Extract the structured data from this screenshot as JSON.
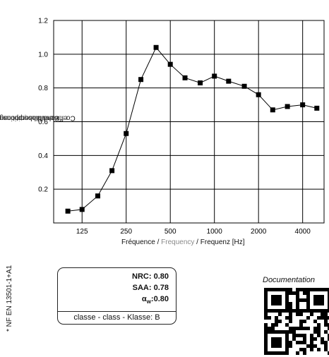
{
  "chart_data": {
    "type": "line",
    "ylabel_fr": "Cœfficient d'absorption acoustique",
    "ylabel_en": "sound absorption coefficient",
    "ylabel_de": "Schallabsorptionsgrad α",
    "xlabel_fr": "Fréquence",
    "xlabel_en": "Frequency",
    "xlabel_de": "Frequenz",
    "xlabel_unit": "[Hz]",
    "xlabel_sep": " / ",
    "x_scale": "log",
    "xlim": [
      80,
      5600
    ],
    "ylim": [
      0,
      1.2
    ],
    "grid": true,
    "yticks": [
      0.2,
      0.4,
      0.6,
      0.8,
      1.0,
      1.2
    ],
    "ytick_labels": [
      "0.2",
      "0.4",
      "0.6",
      "0.8",
      "1.0",
      "1.2"
    ],
    "xticks": [
      125,
      250,
      500,
      1000,
      2000,
      4000
    ],
    "xtick_labels": [
      "125",
      "250",
      "500",
      "1000",
      "2000",
      "4000"
    ],
    "x": [
      100,
      125,
      160,
      200,
      250,
      315,
      400,
      500,
      630,
      800,
      1000,
      1250,
      1600,
      2000,
      2500,
      3150,
      4000,
      5000
    ],
    "y": [
      0.07,
      0.08,
      0.16,
      0.31,
      0.53,
      0.85,
      1.04,
      0.94,
      0.86,
      0.83,
      0.87,
      0.84,
      0.81,
      0.76,
      0.67,
      0.69,
      0.7,
      0.68
    ],
    "marker": "square",
    "line_color": "#000000"
  },
  "standard_note": "* NF EN 13501-1+A1",
  "ratings": {
    "nrc": "NRC: 0.80",
    "saa": "SAA: 0.78",
    "alpha": "α",
    "alpha_sub": "w",
    "alpha_val": ":0.80",
    "class": "classe - class - Klasse: B"
  },
  "documentation_label": "Documentation",
  "qr_icon": "qr-code-icon"
}
